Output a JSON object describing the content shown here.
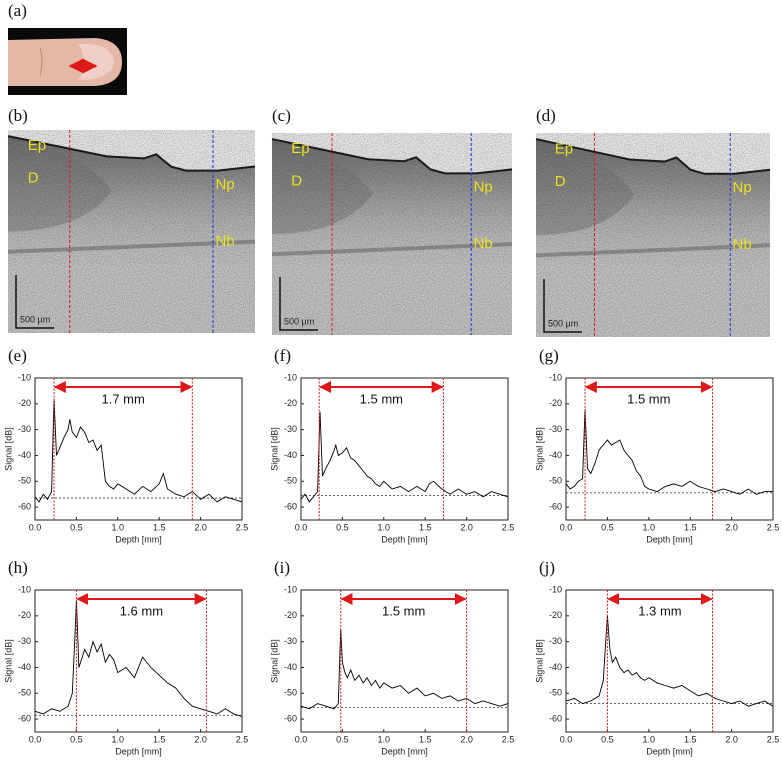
{
  "photo": {
    "label": "(a)"
  },
  "images": [
    {
      "label": "(b)",
      "annotations": [
        "Ep",
        "D",
        "Np",
        "Nb"
      ],
      "scale_bar": "500 µm"
    },
    {
      "label": "(c)",
      "annotations": [
        "Ep",
        "D",
        "Np",
        "Nb"
      ],
      "scale_bar": "500 µm"
    },
    {
      "label": "(d)",
      "annotations": [
        "Ep",
        "D",
        "Np",
        "Nb"
      ],
      "scale_bar": "500 µm"
    }
  ],
  "chart_data": [
    {
      "type": "line",
      "label": "(e)",
      "xlabel": "Depth [mm]",
      "ylabel": "Signal [dB]",
      "x": [
        0,
        0.05,
        0.1,
        0.15,
        0.2,
        0.23,
        0.26,
        0.3,
        0.35,
        0.4,
        0.42,
        0.45,
        0.5,
        0.55,
        0.6,
        0.65,
        0.7,
        0.75,
        0.8,
        0.85,
        0.9,
        0.95,
        1.0,
        1.1,
        1.2,
        1.3,
        1.4,
        1.5,
        1.55,
        1.6,
        1.7,
        1.8,
        1.9,
        2.0,
        2.1,
        2.2,
        2.3,
        2.4,
        2.5
      ],
      "series": [
        {
          "color": "#000000",
          "values": [
            -56,
            -58,
            -55,
            -57,
            -54,
            -18,
            -40,
            -37,
            -33,
            -30,
            -26,
            -31,
            -33,
            -29,
            -31,
            -35,
            -34,
            -38,
            -36,
            -50,
            -52,
            -53,
            -51,
            -53,
            -55,
            -52,
            -54,
            -51,
            -47,
            -53,
            -55,
            -56,
            -54,
            -57,
            -55,
            -58,
            -56,
            -57,
            -58
          ]
        }
      ],
      "xlim": [
        0,
        2.5
      ],
      "ylim": [
        -65,
        -10
      ],
      "xticks": [
        {
          "value": 0,
          "label": "0.0"
        },
        0.5,
        {
          "value": 1,
          "label": "1.0"
        },
        1.5,
        {
          "value": 2,
          "label": "2.0"
        },
        2.5
      ],
      "yticks": [
        -10,
        -20,
        -30,
        -40,
        -50,
        -60
      ],
      "vlines": [
        0.23,
        1.9
      ],
      "marker_color": "#e01818",
      "hline": -56.5,
      "annotation": "1.7 mm"
    },
    {
      "type": "line",
      "label": "(f)",
      "xlabel": "Depth [mm]",
      "ylabel": "Signal [dB]",
      "x": [
        0,
        0.05,
        0.1,
        0.15,
        0.2,
        0.23,
        0.26,
        0.3,
        0.35,
        0.4,
        0.42,
        0.45,
        0.5,
        0.55,
        0.6,
        0.65,
        0.7,
        0.75,
        0.8,
        0.85,
        0.9,
        0.95,
        1.0,
        1.1,
        1.2,
        1.3,
        1.4,
        1.5,
        1.55,
        1.6,
        1.7,
        1.8,
        1.9,
        2.0,
        2.1,
        2.2,
        2.3,
        2.4,
        2.5
      ],
      "series": [
        {
          "color": "#000000",
          "values": [
            -57,
            -55,
            -58,
            -56,
            -54,
            -23,
            -48,
            -45,
            -42,
            -38,
            -36,
            -40,
            -39,
            -37,
            -41,
            -42,
            -44,
            -46,
            -48,
            -49,
            -51,
            -52,
            -50,
            -53,
            -52,
            -54,
            -52,
            -54,
            -51,
            -50,
            -53,
            -55,
            -53,
            -55,
            -54,
            -56,
            -54,
            -55,
            -56
          ]
        }
      ],
      "xlim": [
        0,
        2.5
      ],
      "ylim": [
        -65,
        -10
      ],
      "xticks": [
        {
          "value": 0,
          "label": "0.0"
        },
        0.5,
        {
          "value": 1,
          "label": "1.0"
        },
        1.5,
        {
          "value": 2,
          "label": "2.0"
        },
        2.5
      ],
      "yticks": [
        -10,
        -20,
        -30,
        -40,
        -50,
        -60
      ],
      "vlines": [
        0.22,
        1.72
      ],
      "marker_color": "#e01818",
      "hline": -55.5,
      "annotation": "1.5 mm"
    },
    {
      "type": "line",
      "label": "(g)",
      "xlabel": "Depth [mm]",
      "ylabel": "Signal [dB]",
      "x": [
        0,
        0.05,
        0.1,
        0.15,
        0.2,
        0.23,
        0.26,
        0.3,
        0.35,
        0.4,
        0.42,
        0.45,
        0.5,
        0.55,
        0.6,
        0.65,
        0.7,
        0.75,
        0.8,
        0.85,
        0.9,
        0.95,
        1.0,
        1.1,
        1.2,
        1.3,
        1.4,
        1.5,
        1.55,
        1.6,
        1.7,
        1.8,
        1.9,
        2.0,
        2.1,
        2.2,
        2.3,
        2.4,
        2.5
      ],
      "series": [
        {
          "color": "#000000",
          "values": [
            -51,
            -53,
            -52,
            -50,
            -49,
            -22,
            -45,
            -47,
            -43,
            -38,
            -37,
            -36,
            -34,
            -36,
            -35,
            -34,
            -38,
            -40,
            -42,
            -46,
            -48,
            -52,
            -53,
            -54,
            -52,
            -51,
            -52,
            -50,
            -51,
            -52,
            -53,
            -54,
            -53,
            -54,
            -55,
            -53,
            -55,
            -54,
            -54
          ]
        }
      ],
      "xlim": [
        0,
        2.5
      ],
      "ylim": [
        -65,
        -10
      ],
      "xticks": [
        {
          "value": 0,
          "label": "0.0"
        },
        0.5,
        {
          "value": 1,
          "label": "1.0"
        },
        1.5,
        {
          "value": 2,
          "label": "2.0"
        },
        2.5
      ],
      "yticks": [
        -10,
        -20,
        -30,
        -40,
        -50,
        -60
      ],
      "vlines": [
        0.23,
        1.77
      ],
      "marker_color": "#e01818",
      "hline": -54.5,
      "annotation": "1.5 mm"
    },
    {
      "type": "line",
      "label": "(h)",
      "xlabel": "Depth [mm]",
      "ylabel": "Signal [dB]",
      "x": [
        0,
        0.1,
        0.2,
        0.3,
        0.4,
        0.45,
        0.48,
        0.5,
        0.53,
        0.56,
        0.6,
        0.65,
        0.7,
        0.75,
        0.8,
        0.85,
        0.9,
        0.95,
        1.0,
        1.1,
        1.2,
        1.3,
        1.4,
        1.5,
        1.6,
        1.7,
        1.8,
        1.9,
        2.0,
        2.1,
        2.2,
        2.3,
        2.4,
        2.5
      ],
      "series": [
        {
          "color": "#000000",
          "values": [
            -57,
            -58,
            -56,
            -57,
            -55,
            -50,
            -30,
            -14,
            -40,
            -37,
            -33,
            -36,
            -30,
            -34,
            -31,
            -38,
            -35,
            -37,
            -42,
            -40,
            -44,
            -36,
            -40,
            -43,
            -46,
            -48,
            -52,
            -55,
            -56,
            -57,
            -58,
            -56,
            -58,
            -59
          ]
        }
      ],
      "xlim": [
        0,
        2.5
      ],
      "ylim": [
        -65,
        -10
      ],
      "xticks": [
        {
          "value": 0,
          "label": "0.0"
        },
        0.5,
        {
          "value": 1,
          "label": "1.0"
        },
        1.5,
        {
          "value": 2,
          "label": "2.0"
        },
        2.5
      ],
      "yticks": [
        -10,
        -20,
        -30,
        -40,
        -50,
        -60
      ],
      "vlines": [
        0.5,
        2.07
      ],
      "marker_color": "#e01818",
      "hline": -58.5,
      "annotation": "1.6 mm"
    },
    {
      "type": "line",
      "label": "(i)",
      "xlabel": "Depth [mm]",
      "ylabel": "Signal [dB]",
      "x": [
        0,
        0.1,
        0.2,
        0.3,
        0.4,
        0.45,
        0.48,
        0.5,
        0.53,
        0.56,
        0.6,
        0.65,
        0.7,
        0.75,
        0.8,
        0.85,
        0.9,
        0.95,
        1.0,
        1.1,
        1.2,
        1.3,
        1.4,
        1.5,
        1.6,
        1.7,
        1.8,
        1.9,
        2.0,
        2.1,
        2.2,
        2.3,
        2.4,
        2.5
      ],
      "series": [
        {
          "color": "#000000",
          "values": [
            -55,
            -56,
            -54,
            -55,
            -56,
            -54,
            -25,
            -38,
            -42,
            -44,
            -41,
            -45,
            -43,
            -46,
            -44,
            -47,
            -45,
            -48,
            -46,
            -48,
            -47,
            -50,
            -48,
            -51,
            -50,
            -52,
            -51,
            -53,
            -52,
            -54,
            -53,
            -54,
            -55,
            -54
          ]
        }
      ],
      "xlim": [
        0,
        2.5
      ],
      "ylim": [
        -65,
        -10
      ],
      "xticks": [
        {
          "value": 0,
          "label": "0.0"
        },
        0.5,
        {
          "value": 1,
          "label": "1.0"
        },
        1.5,
        {
          "value": 2,
          "label": "2.0"
        },
        2.5
      ],
      "yticks": [
        -10,
        -20,
        -30,
        -40,
        -50,
        -60
      ],
      "vlines": [
        0.48,
        2.0
      ],
      "marker_color": "#e01818",
      "hline": -55.5,
      "annotation": "1.5 mm"
    },
    {
      "type": "line",
      "label": "(j)",
      "xlabel": "Depth [mm]",
      "ylabel": "Signal [dB]",
      "x": [
        0,
        0.1,
        0.2,
        0.3,
        0.4,
        0.45,
        0.48,
        0.5,
        0.53,
        0.56,
        0.6,
        0.65,
        0.7,
        0.75,
        0.8,
        0.85,
        0.9,
        0.95,
        1.0,
        1.1,
        1.2,
        1.3,
        1.4,
        1.5,
        1.6,
        1.7,
        1.8,
        1.9,
        2.0,
        2.1,
        2.2,
        2.3,
        2.4,
        2.5
      ],
      "series": [
        {
          "color": "#000000",
          "values": [
            -53,
            -52,
            -54,
            -53,
            -51,
            -45,
            -30,
            -20,
            -33,
            -38,
            -36,
            -40,
            -42,
            -41,
            -43,
            -42,
            -44,
            -45,
            -44,
            -46,
            -47,
            -48,
            -47,
            -49,
            -51,
            -50,
            -52,
            -53,
            -54,
            -53,
            -55,
            -54,
            -53,
            -55
          ]
        }
      ],
      "xlim": [
        0,
        2.5
      ],
      "ylim": [
        -65,
        -10
      ],
      "xticks": [
        {
          "value": 0,
          "label": "0.0"
        },
        0.5,
        {
          "value": 1,
          "label": "1.0"
        },
        1.5,
        {
          "value": 2,
          "label": "2.0"
        },
        2.5
      ],
      "yticks": [
        -10,
        -20,
        -30,
        -40,
        -50,
        -60
      ],
      "vlines": [
        0.5,
        1.77
      ],
      "marker_color": "#e01818",
      "hline": -54,
      "annotation": "1.3 mm"
    }
  ]
}
